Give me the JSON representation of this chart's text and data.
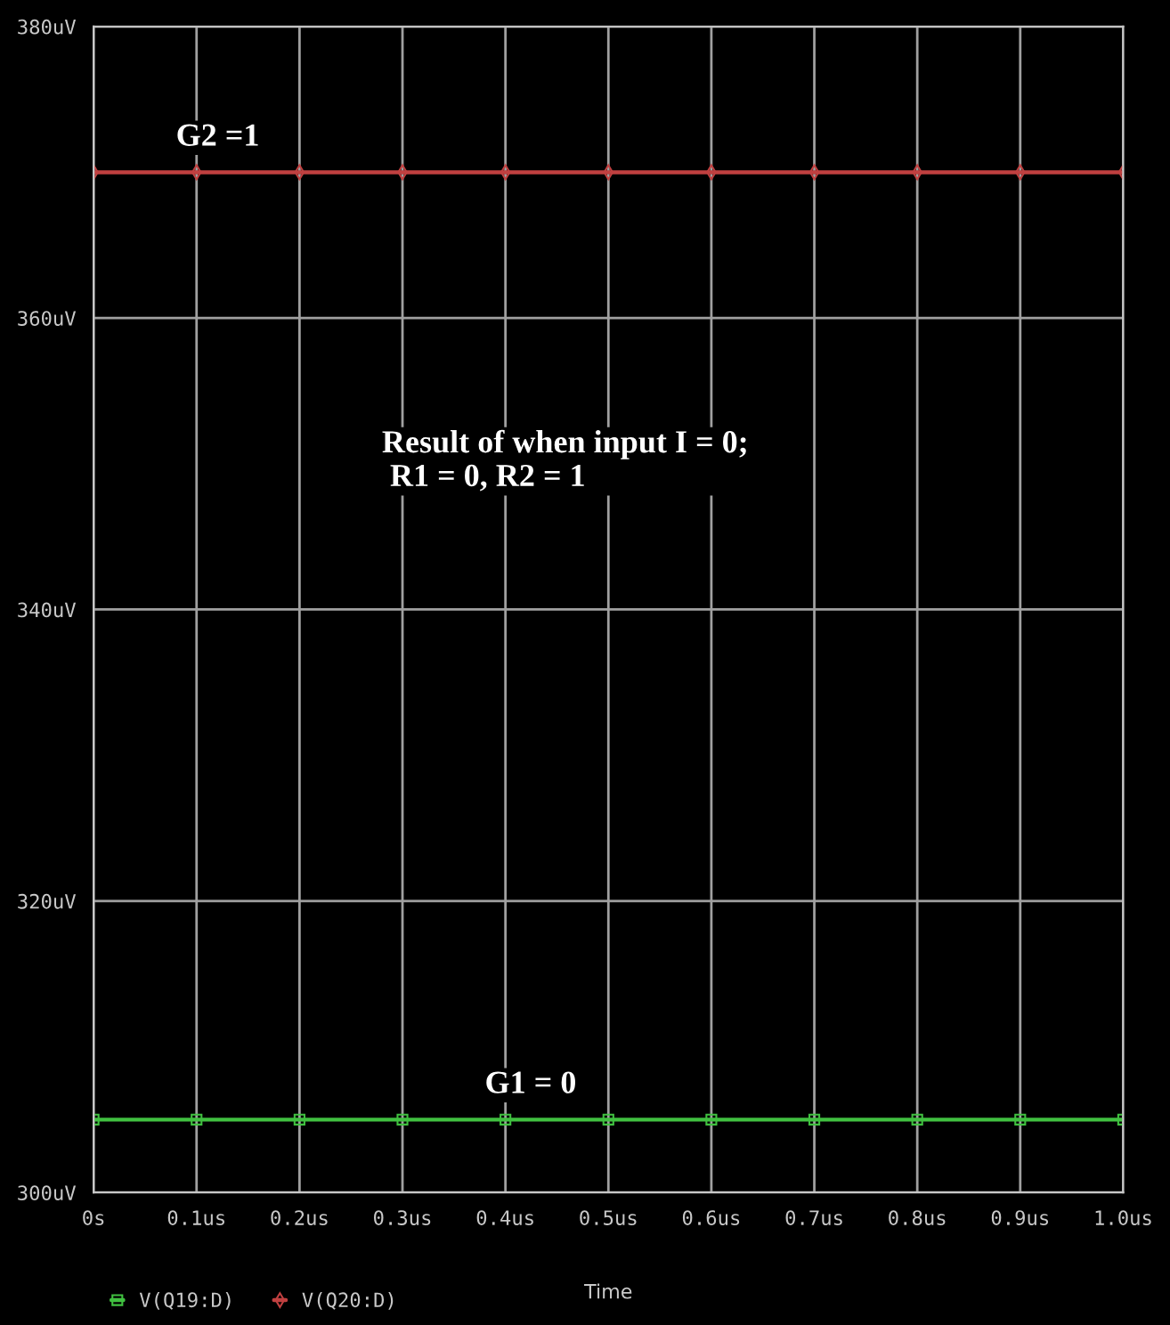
{
  "chart_data": {
    "type": "line",
    "xlabel": "Time",
    "x": [
      0,
      0.1,
      0.2,
      0.3,
      0.4,
      0.5,
      0.6,
      0.7,
      0.8,
      0.9,
      1.0
    ],
    "series": [
      {
        "name": "V(Q19:D)",
        "color": "#40c040",
        "marker": "square",
        "values": [
          305,
          305,
          305,
          305,
          305,
          305,
          305,
          305,
          305,
          305,
          305
        ]
      },
      {
        "name": "V(Q20:D)",
        "color": "#c04040",
        "marker": "diamond",
        "values": [
          370,
          370,
          370,
          370,
          370,
          370,
          370,
          370,
          370,
          370,
          370
        ]
      }
    ],
    "xlim": [
      0,
      1.0
    ],
    "xticks": [
      {
        "value": 0,
        "label": "0s"
      },
      {
        "value": 0.1,
        "label": "0.1us"
      },
      {
        "value": 0.2,
        "label": "0.2us"
      },
      {
        "value": 0.3,
        "label": "0.3us"
      },
      {
        "value": 0.4,
        "label": "0.4us"
      },
      {
        "value": 0.5,
        "label": "0.5us"
      },
      {
        "value": 0.6,
        "label": "0.6us"
      },
      {
        "value": 0.7,
        "label": "0.7us"
      },
      {
        "value": 0.8,
        "label": "0.8us"
      },
      {
        "value": 0.9,
        "label": "0.9us"
      },
      {
        "value": 1.0,
        "label": "1.0us"
      }
    ],
    "ylim": [
      300,
      380
    ],
    "yticks": [
      {
        "value": 300,
        "label": "300uV"
      },
      {
        "value": 320,
        "label": "320uV"
      },
      {
        "value": 340,
        "label": "340uV"
      },
      {
        "value": 360,
        "label": "360uV"
      },
      {
        "value": 380,
        "label": "380uV"
      }
    ],
    "annotations": [
      {
        "text": "G2 =1",
        "x": 0.08,
        "y": 370
      },
      {
        "text": "G1 = 0",
        "x": 0.38,
        "y": 305
      },
      "Result of when input I = 0;\n R1 = 0, R2 = 1"
    ],
    "grid": true,
    "legend": "bottom left"
  }
}
